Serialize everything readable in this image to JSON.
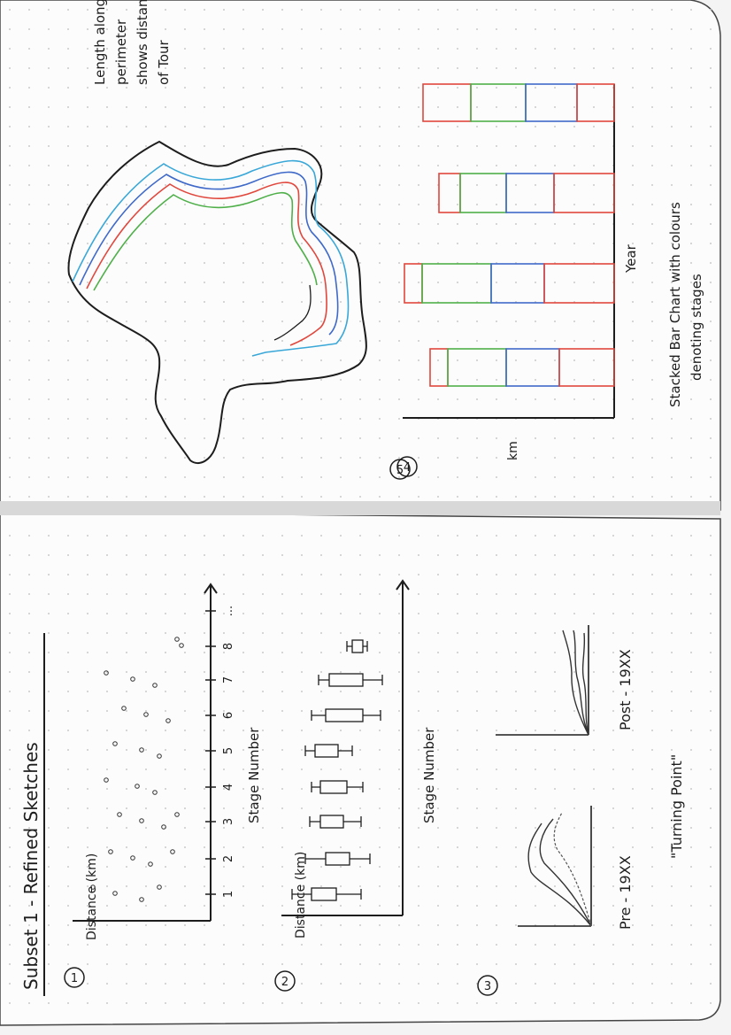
{
  "page": {
    "title": "Subset 1 - Refined Sketches",
    "sketch_numbers": [
      "1",
      "2",
      "3",
      "4",
      "5"
    ]
  },
  "sketch1": {
    "ylabel": "Distance (km)",
    "xlabel": "Stage Number",
    "ticks": [
      "1",
      "2",
      "3",
      "4",
      "5",
      "6",
      "7",
      "8",
      "..."
    ]
  },
  "sketch2": {
    "ylabel": "Distance (km)",
    "xlabel": "Stage Number"
  },
  "sketch3": {
    "left_label": "Pre - 19XX",
    "right_label": "Post - 19XX",
    "caption": "\"Turning Point\""
  },
  "sketch4": {
    "note": [
      "Length along",
      "perimeter",
      "shows distance",
      "of Tour"
    ]
  },
  "sketch5": {
    "ylabel": "km",
    "xlabel": "Year",
    "caption": [
      "Stacked Bar Chart with colours",
      "denoting stages"
    ]
  },
  "colors": {
    "ink": "#1d1d1d",
    "red": "#e0473d",
    "green": "#4fb04a",
    "blue": "#3f69c9",
    "cyan": "#39a7d8",
    "grid_dot": "#c9c9c9",
    "page_edge": "#3a3a3a"
  }
}
